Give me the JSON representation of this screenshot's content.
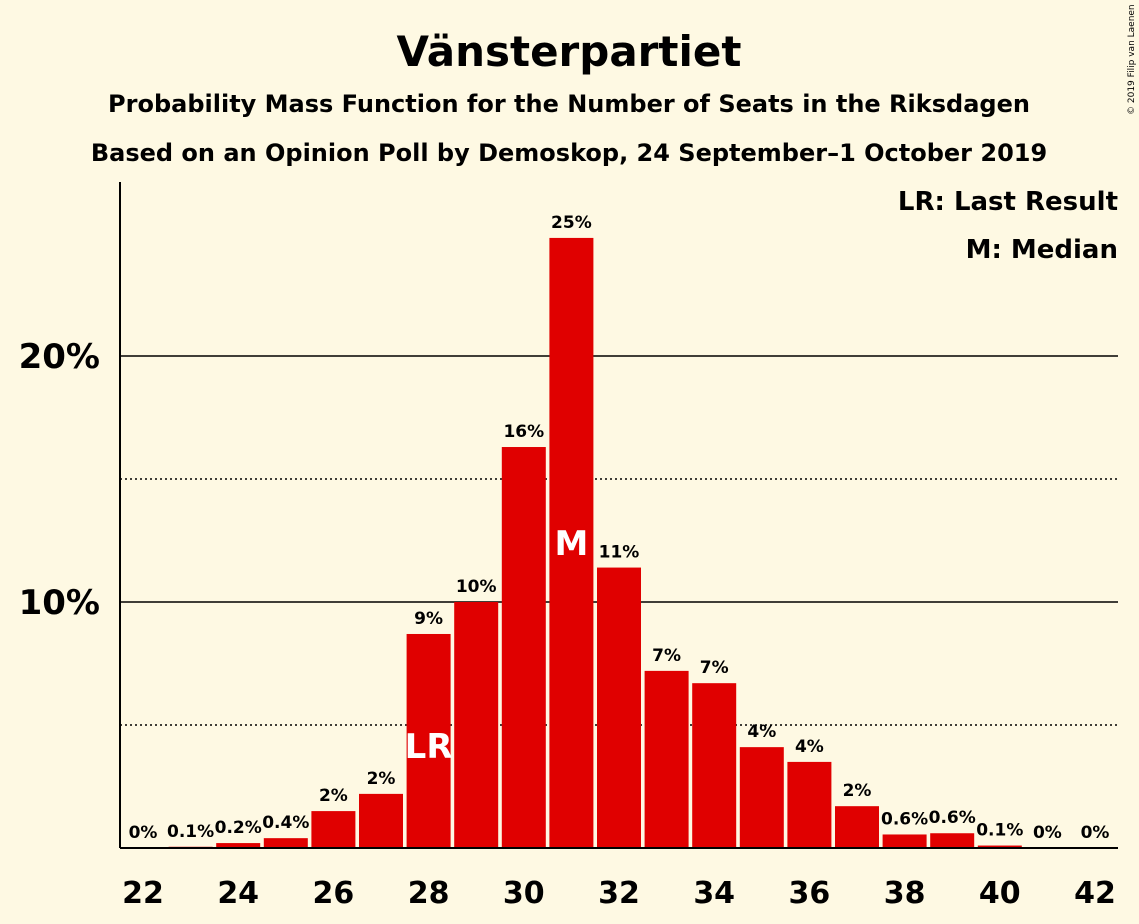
{
  "chart_data": {
    "type": "bar",
    "title": "Vänsterpartiet",
    "subtitle": "Probability Mass Function for the Number of Seats in the Riksdagen",
    "subtitle2": "Based on an Opinion Poll by Demoskop, 24 September–1 October 2019",
    "copyright": "© 2019 Filip van Laenen",
    "categories": [
      22,
      23,
      24,
      25,
      26,
      27,
      28,
      29,
      30,
      31,
      32,
      33,
      34,
      35,
      36,
      37,
      38,
      39,
      40,
      41,
      42
    ],
    "values": [
      0,
      0.05,
      0.2,
      0.4,
      1.5,
      2.2,
      8.7,
      10.0,
      16.3,
      24.8,
      11.4,
      7.2,
      6.7,
      4.1,
      3.5,
      1.7,
      0.55,
      0.6,
      0.1,
      0,
      0
    ],
    "labels": [
      "0%",
      "0.1%",
      "0.2%",
      "0.4%",
      "2%",
      "2%",
      "9%",
      "10%",
      "16%",
      "25%",
      "11%",
      "7%",
      "7%",
      "4%",
      "4%",
      "2%",
      "0.6%",
      "0.6%",
      "0.1%",
      "0%",
      "0%"
    ],
    "x_tick_labels": [
      "22",
      "24",
      "26",
      "28",
      "30",
      "32",
      "34",
      "36",
      "38",
      "40",
      "42"
    ],
    "y_tick_labels": [
      "10%",
      "20%"
    ],
    "ylim": [
      0,
      27
    ],
    "solid_gridlines": [
      10,
      20
    ],
    "dotted_gridlines": [
      5,
      15
    ],
    "bar_color": "#e00000",
    "background": "#fef9e3",
    "markers": [
      {
        "seats": 28,
        "text": "LR"
      },
      {
        "seats": 31,
        "text": "M"
      }
    ],
    "legend": [
      "LR: Last Result",
      "M: Median"
    ],
    "legend_position": "top-right"
  }
}
